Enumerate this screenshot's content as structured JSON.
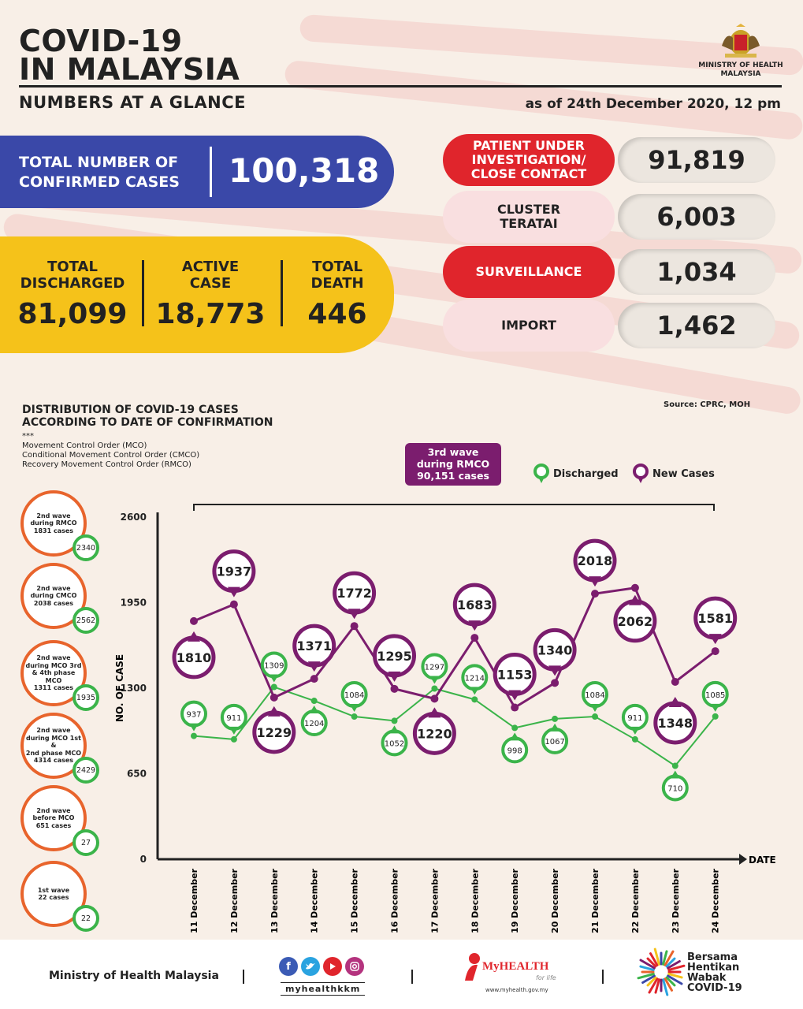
{
  "header": {
    "title_line1": "COVID-19",
    "title_line2": "IN MALAYSIA",
    "subtitle": "NUMBERS AT A GLANCE",
    "as_of": "as of 24th December 2020, 12 pm",
    "ministry_line1": "MINISTRY OF HEALTH",
    "ministry_line2": "MALAYSIA"
  },
  "totals": {
    "confirmed_label_1": "TOTAL NUMBER OF",
    "confirmed_label_2": "CONFIRMED CASES",
    "confirmed_value": "100,318",
    "discharged_label_1": "TOTAL",
    "discharged_label_2": "DISCHARGED",
    "discharged_value": "81,099",
    "active_label_1": "ACTIVE",
    "active_label_2": "CASE",
    "active_value": "18,773",
    "death_label_1": "TOTAL",
    "death_label_2": "DEATH",
    "death_value": "446"
  },
  "sources": [
    {
      "label_1": "PATIENT UNDER",
      "label_2": "INVESTIGATION/",
      "label_3": "CLOSE CONTACT",
      "value": "91,819"
    },
    {
      "label_1": "CLUSTER",
      "label_2": "TERATAI",
      "label_3": "",
      "value": "6,003"
    },
    {
      "label_1": "SURVEILLANCE",
      "label_2": "",
      "label_3": "",
      "value": "1,034"
    },
    {
      "label_1": "IMPORT",
      "label_2": "",
      "label_3": "",
      "value": "1,462"
    }
  ],
  "section": {
    "title_1": "DISTRIBUTION OF COVID-19 CASES",
    "title_2": "ACCORDING TO DATE OF CONFIRMATION",
    "source": "Source: CPRC, MOH",
    "stars": "***",
    "note_1": "Movement Control Order (MCO)",
    "note_2": "Conditional Movement Control Order (CMCO)",
    "note_3": "Recovery Movement Control Order (RMCO)",
    "wave_box_1": "3rd wave",
    "wave_box_2": "during RMCO",
    "wave_box_3": "90,151 cases",
    "legend_discharged": "Discharged",
    "legend_new": "New Cases"
  },
  "waves": [
    {
      "l1": "2nd wave",
      "l2": "during RMCO",
      "l3": "1831 cases",
      "l4": "",
      "badge": "2340"
    },
    {
      "l1": "2nd wave",
      "l2": "during CMCO",
      "l3": "2038 cases",
      "l4": "",
      "badge": "2562"
    },
    {
      "l1": "2nd wave",
      "l2": "during MCO 3rd",
      "l3": "& 4th phase MCO",
      "l4": "1311 cases",
      "badge": "1935"
    },
    {
      "l1": "2nd wave",
      "l2": "during MCO 1st &",
      "l3": "2nd phase MCO",
      "l4": "4314 cases",
      "badge": "2429"
    },
    {
      "l1": "2nd wave",
      "l2": "before MCO",
      "l3": "651 cases",
      "l4": "",
      "badge": "27"
    },
    {
      "l1": "1st wave",
      "l2": "22 cases",
      "l3": "",
      "l4": "",
      "badge": "22"
    }
  ],
  "chart_data": {
    "type": "line",
    "xlabel": "DATE",
    "ylabel": "NO. OF CASE",
    "ylim": [
      0,
      2600
    ],
    "yticks": [
      0,
      650,
      1300,
      1950,
      2600
    ],
    "categories": [
      "11 December",
      "12 December",
      "13 December",
      "14 December",
      "15 December",
      "16 December",
      "17 December",
      "18 December",
      "19 December",
      "20 December",
      "21 December",
      "22 December",
      "23 December",
      "24 December"
    ],
    "series": [
      {
        "name": "New Cases",
        "color": "#7b1d6e",
        "values": [
          1810,
          1937,
          1229,
          1371,
          1772,
          1295,
          1220,
          1683,
          1153,
          1340,
          2018,
          2062,
          1348,
          1581
        ]
      },
      {
        "name": "Discharged",
        "color": "#3bb44a",
        "values": [
          937,
          911,
          1309,
          1204,
          1084,
          1052,
          1297,
          1214,
          998,
          1067,
          1084,
          911,
          710,
          1085
        ]
      }
    ],
    "grid": false,
    "legend": "top-right"
  },
  "footer": {
    "ministry": "Ministry of Health Malaysia",
    "social": "myhealthkkm",
    "myhealth": "MyHEALTH",
    "myhealth_tag": "for life",
    "myhealth_url": "www.myhealth.gov.my",
    "bersama_1": "Bersama",
    "bersama_2": "Hentikan",
    "bersama_3": "Wabak",
    "bersama_4": "COVID-19"
  }
}
